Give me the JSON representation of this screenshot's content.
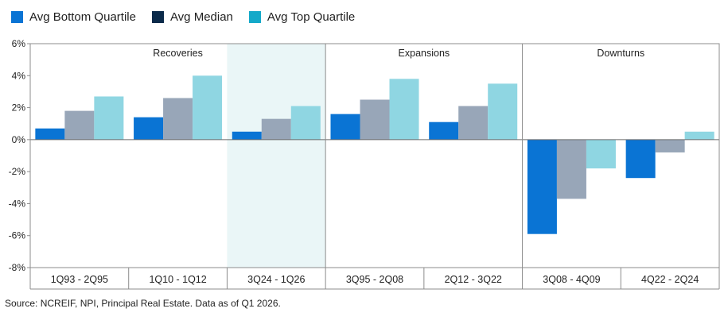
{
  "legend": [
    {
      "label": "Avg Bottom Quartile",
      "color": "#0a74d4"
    },
    {
      "label": "Avg Median",
      "color": "#0b2a4a"
    },
    {
      "label": "Avg Top Quartile",
      "color": "#14a9c9"
    }
  ],
  "source": "Source: NCREIF, NPI, Principal Real Estate. Data as of Q1 2026.",
  "chart_data": {
    "type": "bar",
    "title": "",
    "xlabel": "",
    "ylabel": "",
    "ylim": [
      -8,
      6
    ],
    "ytick_values": [
      6,
      4,
      2,
      0,
      -2,
      -4,
      -6,
      -8
    ],
    "ytick_labels": [
      "6%",
      "4%",
      "2%",
      "0%",
      "-2%",
      "-4%",
      "-6%",
      "-8%"
    ],
    "grid": false,
    "legend_position": "top-left",
    "categories": [
      "1Q93 - 2Q95",
      "1Q10 - 1Q12",
      "3Q24 - 1Q26",
      "3Q95 - 2Q08",
      "2Q12 - 3Q22",
      "3Q08 - 4Q09",
      "4Q22 - 2Q24"
    ],
    "groups": [
      {
        "label": "Recoveries",
        "categories": [
          0,
          1,
          2
        ]
      },
      {
        "label": "Expansions",
        "categories": [
          3,
          4
        ]
      },
      {
        "label": "Downturns",
        "categories": [
          5,
          6
        ]
      }
    ],
    "highlighted_category": 2,
    "highlight_color": "#eaf6f7",
    "series": [
      {
        "name": "Avg Bottom Quartile",
        "color": "#0a74d4",
        "values": [
          0.7,
          1.4,
          0.5,
          1.6,
          1.1,
          -5.9,
          -2.4
        ]
      },
      {
        "name": "Avg Median",
        "color": "#98a6b8",
        "values": [
          1.8,
          2.6,
          1.3,
          2.5,
          2.1,
          -3.7,
          -0.8
        ]
      },
      {
        "name": "Avg Top Quartile",
        "color": "#8fd6e2",
        "values": [
          2.7,
          4.0,
          2.1,
          3.8,
          3.5,
          -1.8,
          0.5
        ]
      }
    ]
  }
}
